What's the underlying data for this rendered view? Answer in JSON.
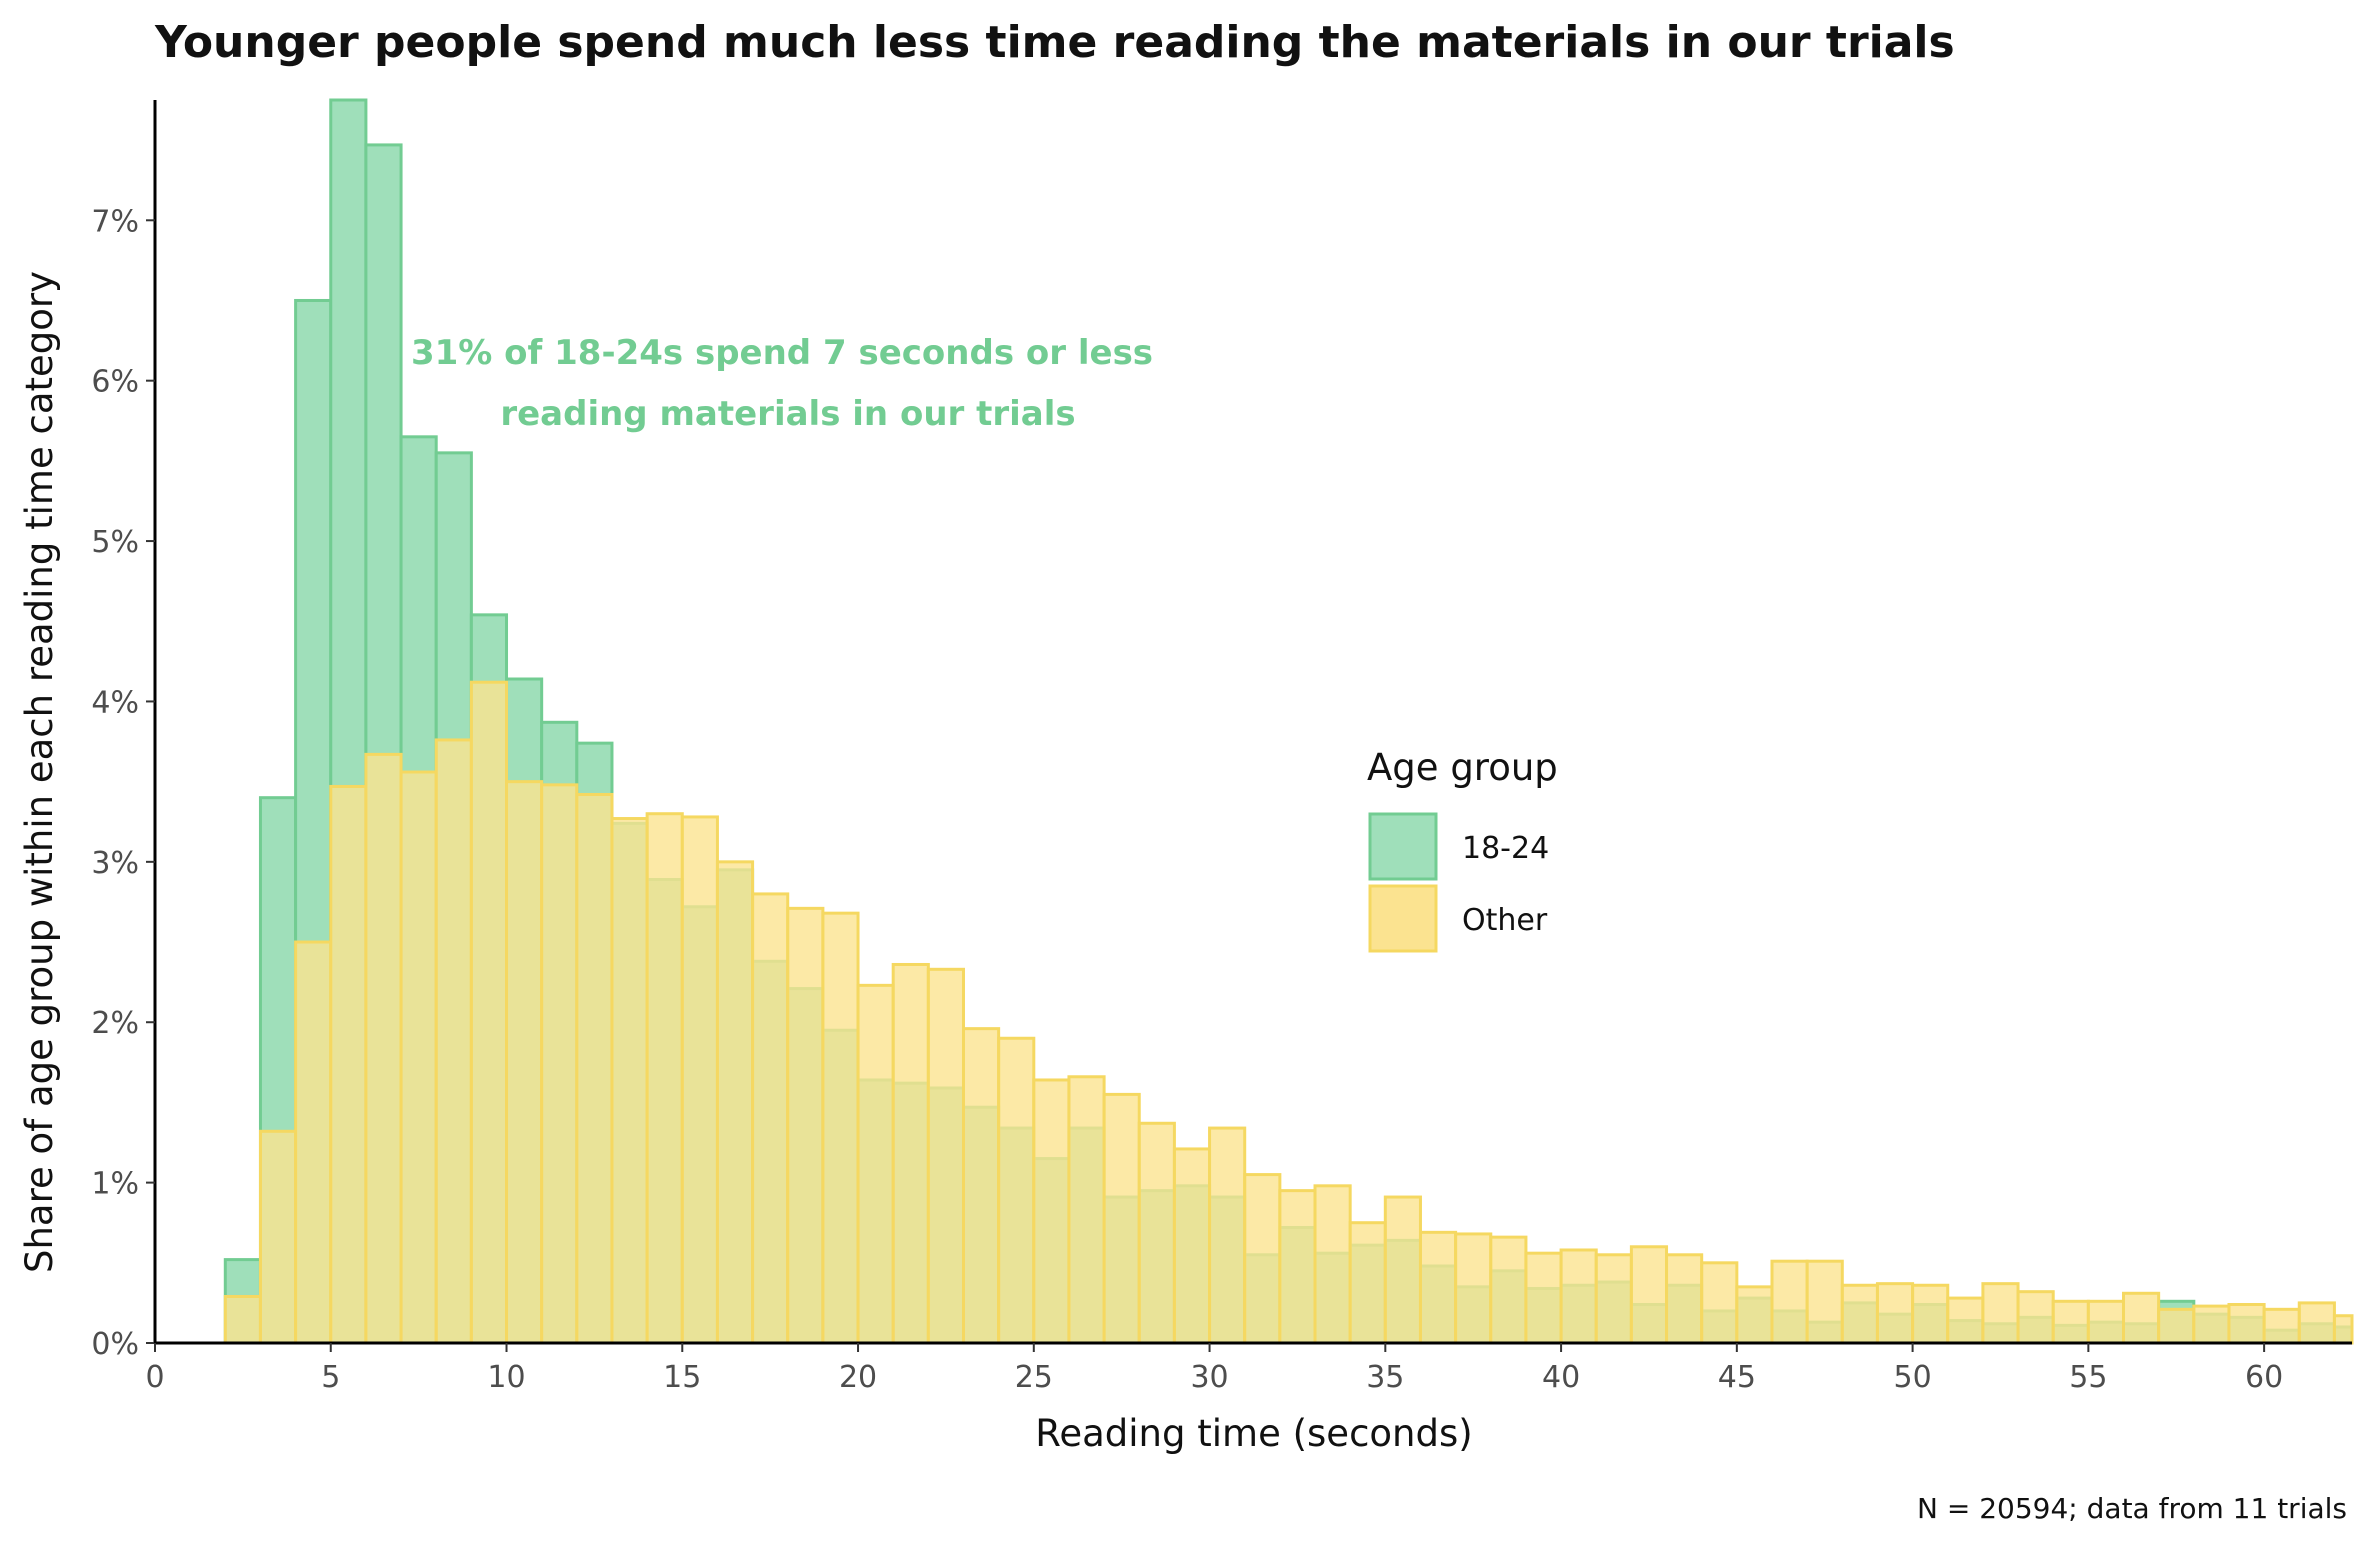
{
  "chart_data": {
    "type": "histogram",
    "title": "Younger people spend much less time reading the materials in our trials",
    "xlabel": "Reading time (seconds)",
    "ylabel": "Share of age group within each reading time category",
    "caption": "N = 20594; data from 11 trials",
    "annotation": [
      "31% of 18-24s spend 7 seconds or less",
      "reading materials in our trials"
    ],
    "xlim": [
      0,
      62.5
    ],
    "ylim": [
      0,
      7.75
    ],
    "x_ticks": [
      0,
      5,
      10,
      15,
      20,
      25,
      30,
      35,
      40,
      45,
      50,
      55,
      60
    ],
    "y_ticks": [
      0,
      1,
      2,
      3,
      4,
      5,
      6,
      7
    ],
    "y_tick_labels": [
      "0%",
      "1%",
      "2%",
      "3%",
      "4%",
      "5%",
      "6%",
      "7%"
    ],
    "bin_width": 1,
    "bin_starts": [
      2,
      3,
      4,
      5,
      6,
      7,
      8,
      9,
      10,
      11,
      12,
      13,
      14,
      15,
      16,
      17,
      18,
      19,
      20,
      21,
      22,
      23,
      24,
      25,
      26,
      27,
      28,
      29,
      30,
      31,
      32,
      33,
      34,
      35,
      36,
      37,
      38,
      39,
      40,
      41,
      42,
      43,
      44,
      45,
      46,
      47,
      48,
      49,
      50,
      51,
      52,
      53,
      54,
      55,
      56,
      57,
      58,
      59,
      60,
      61,
      62
    ],
    "legend": {
      "title": "Age group",
      "position": "right-middle"
    },
    "grid": false,
    "series": [
      {
        "name": "18-24",
        "color": "#72cc92",
        "fill": "#9fdfba",
        "values": [
          0.52,
          3.4,
          6.5,
          7.75,
          7.47,
          5.65,
          5.55,
          4.54,
          4.14,
          3.87,
          3.74,
          3.24,
          2.89,
          2.72,
          2.95,
          2.38,
          2.21,
          1.95,
          1.64,
          1.62,
          1.59,
          1.47,
          1.34,
          1.15,
          1.34,
          0.91,
          0.95,
          0.98,
          0.91,
          0.55,
          0.72,
          0.56,
          0.61,
          0.64,
          0.48,
          0.35,
          0.45,
          0.34,
          0.36,
          0.38,
          0.24,
          0.36,
          0.2,
          0.28,
          0.2,
          0.13,
          0.25,
          0.18,
          0.24,
          0.14,
          0.12,
          0.16,
          0.11,
          0.13,
          0.12,
          0.26,
          0.18,
          0.16,
          0.08,
          0.12,
          0.1
        ]
      },
      {
        "name": "Other",
        "color": "#f5d861",
        "fill": "#fbe390",
        "values": [
          0.29,
          1.32,
          2.5,
          3.47,
          3.67,
          3.56,
          3.76,
          4.12,
          3.5,
          3.48,
          3.42,
          3.27,
          3.3,
          3.28,
          3.0,
          2.8,
          2.71,
          2.68,
          2.23,
          2.36,
          2.33,
          1.96,
          1.9,
          1.64,
          1.66,
          1.55,
          1.37,
          1.21,
          1.34,
          1.05,
          0.95,
          0.98,
          0.75,
          0.91,
          0.69,
          0.68,
          0.66,
          0.56,
          0.58,
          0.55,
          0.6,
          0.55,
          0.5,
          0.35,
          0.51,
          0.51,
          0.36,
          0.37,
          0.36,
          0.28,
          0.37,
          0.32,
          0.26,
          0.26,
          0.31,
          0.21,
          0.23,
          0.24,
          0.21,
          0.25,
          0.17
        ]
      }
    ]
  }
}
